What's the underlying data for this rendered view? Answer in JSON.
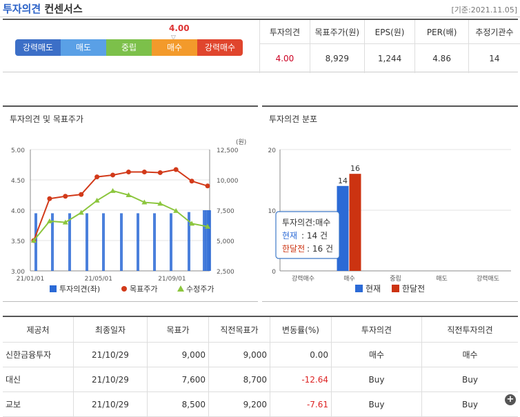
{
  "header": {
    "title_a": "투자의견",
    "title_b": "컨센서스",
    "date": "[기준:2021.11.05]"
  },
  "opinion_scale": {
    "labels": [
      "강력매도",
      "매도",
      "중립",
      "매수",
      "강력매수"
    ],
    "current_value": "4.00",
    "marker": "▽"
  },
  "summary": {
    "headers": [
      "투자의견",
      "목표주가(원)",
      "EPS(원)",
      "PER(배)",
      "추정기관수"
    ],
    "values": [
      "4.00",
      "8,929",
      "1,244",
      "4.86",
      "14"
    ]
  },
  "panel_left": {
    "title": "투자의견 및 목표주가"
  },
  "panel_right": {
    "title": "투자의견 분포"
  },
  "chart_data": [
    {
      "type": "bar+line",
      "y_unit_right": "(원)",
      "y_left_ticks": [
        "5.00",
        "4.50",
        "4.00",
        "3.50",
        "3.00"
      ],
      "y_left_range": [
        3.0,
        5.0
      ],
      "y_right_ticks": [
        "12,500",
        "10,000",
        "7,500",
        "5,000",
        "2,500"
      ],
      "y_right_range": [
        2500,
        12500
      ],
      "x_ticks": [
        "21/01/01",
        "21/05/01",
        "21/09/01"
      ],
      "series": [
        {
          "name": "투자의견(좌)",
          "color": "#2b6ad6",
          "values": [
            3.95,
            3.95,
            3.95,
            3.95,
            3.95,
            3.95,
            3.95,
            3.95,
            3.95,
            3.97,
            4.0,
            4.0,
            4.0,
            4.0
          ]
        },
        {
          "name": "목표주가",
          "color": "#d23a1a",
          "values": [
            5000,
            8450,
            8650,
            8800,
            10250,
            10400,
            10650,
            10650,
            10600,
            10850,
            9900,
            9500
          ]
        },
        {
          "name": "수정주가",
          "color": "#8cc63e",
          "values": [
            5000,
            6600,
            6500,
            7300,
            8300,
            9100,
            8750,
            8150,
            8050,
            7450,
            6400,
            6150
          ]
        }
      ],
      "legend": [
        "투자의견(좌)",
        "목표주가",
        "수정주가"
      ]
    },
    {
      "type": "bar",
      "y_ticks": [
        "20",
        "10",
        "0"
      ],
      "y_range": [
        0,
        20
      ],
      "categories": [
        "강력매수",
        "매수",
        "중립",
        "매도",
        "강력매도"
      ],
      "series": [
        {
          "name": "현재",
          "color": "#2b6ad6",
          "values": [
            0,
            14,
            0,
            0,
            0
          ]
        },
        {
          "name": "한달전",
          "color": "#cc3311",
          "values": [
            0,
            16,
            0,
            0,
            0
          ]
        }
      ],
      "tooltip": {
        "title": "투자의견:매수",
        "line1_label": "현재",
        "line1_value": ": 14 건",
        "line2_label": "한달전",
        "line2_value": ": 16 건"
      },
      "legend": [
        "현재",
        "한달전"
      ]
    }
  ],
  "detail": {
    "headers": [
      "제공처",
      "최종일자",
      "목표가",
      "직전목표가",
      "변동률(%)",
      "투자의견",
      "직전투자의견"
    ],
    "rows": [
      [
        "신한금융투자",
        "21/10/29",
        "9,000",
        "9,000",
        "0.00",
        "매수",
        "매수"
      ],
      [
        "대신",
        "21/10/29",
        "7,600",
        "8,700",
        "-12.64",
        "Buy",
        "Buy"
      ],
      [
        "교보",
        "21/10/29",
        "8,500",
        "9,200",
        "-7.61",
        "Buy",
        "Buy"
      ]
    ]
  },
  "more_button": "+"
}
